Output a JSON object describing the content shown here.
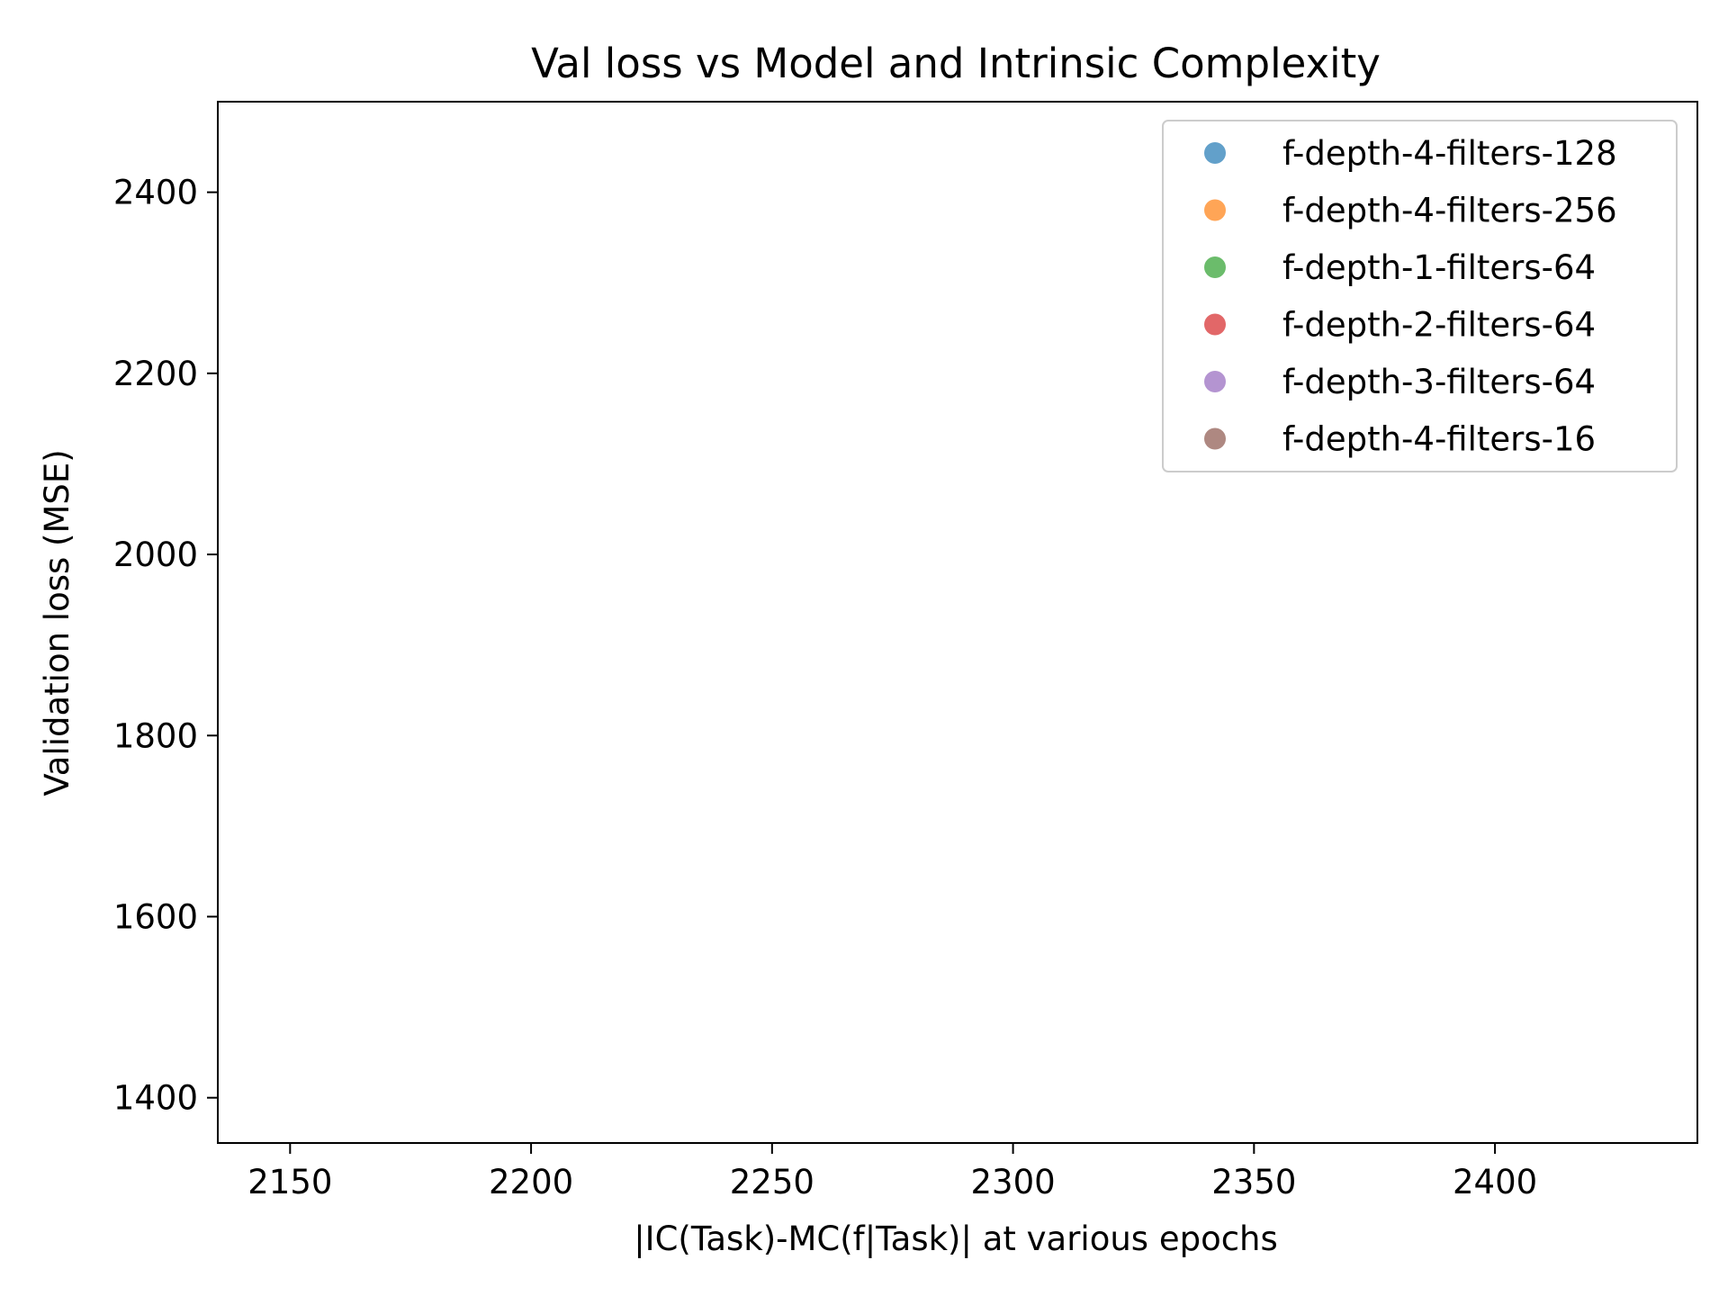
{
  "chart_data": {
    "type": "scatter",
    "title": "Val loss vs Model and Intrinsic Complexity",
    "xlabel": "|IC(Task)-MC(f|Task)| at various epochs",
    "ylabel": "Validation loss (MSE)",
    "xlim": [
      2135,
      2442
    ],
    "ylim": [
      1350,
      2500
    ],
    "x_ticks": [
      2150,
      2200,
      2250,
      2300,
      2350,
      2400
    ],
    "y_ticks": [
      1400,
      1600,
      1800,
      2000,
      2200,
      2400
    ],
    "grid": false,
    "legend_position": "top-right",
    "series": [
      {
        "name": "f-depth-4-filters-128",
        "color": "#1f77b4",
        "points": []
      },
      {
        "name": "f-depth-4-filters-256",
        "color": "#ff7f0e",
        "points": []
      },
      {
        "name": "f-depth-1-filters-64",
        "color": "#2ca02c",
        "points": []
      },
      {
        "name": "f-depth-2-filters-64",
        "color": "#d62728",
        "points": []
      },
      {
        "name": "f-depth-3-filters-64",
        "color": "#9467bd",
        "points": []
      },
      {
        "name": "f-depth-4-filters-16",
        "color": "#8c564b",
        "points": []
      }
    ]
  }
}
